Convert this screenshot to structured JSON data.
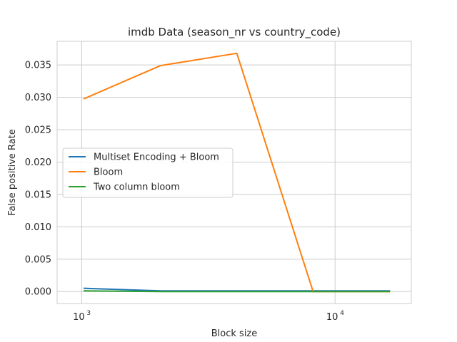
{
  "chart_data": {
    "type": "line",
    "title": "imdb Data (season_nr vs country_code)",
    "xlabel": "Block size",
    "ylabel": "False positive Rate",
    "xscale": "log",
    "xlim": [
      800,
      20000
    ],
    "ylim": [
      -0.00185,
      0.03865
    ],
    "x_ticks": [
      {
        "value": 1000,
        "base": "10",
        "exp": "3"
      },
      {
        "value": 10000,
        "base": "10",
        "exp": "4"
      }
    ],
    "y_ticks": [
      {
        "value": 0.0,
        "label": "0.000"
      },
      {
        "value": 0.005,
        "label": "0.005"
      },
      {
        "value": 0.01,
        "label": "0.010"
      },
      {
        "value": 0.015,
        "label": "0.015"
      },
      {
        "value": 0.02,
        "label": "0.020"
      },
      {
        "value": 0.025,
        "label": "0.025"
      },
      {
        "value": 0.03,
        "label": "0.030"
      },
      {
        "value": 0.035,
        "label": "0.035"
      }
    ],
    "grid": true,
    "legend_position": "center-left",
    "x": [
      1024,
      2048,
      4096,
      8192,
      16384
    ],
    "series": [
      {
        "name": "Multiset Encoding + Bloom",
        "color": "#1f77b4",
        "values": [
          0.0005,
          0.0001,
          0.0001,
          0.0001,
          0.0001
        ]
      },
      {
        "name": "Bloom",
        "color": "#ff7f0e",
        "values": [
          0.0298,
          0.0349,
          0.0368,
          0.0,
          0.0
        ]
      },
      {
        "name": "Two column bloom",
        "color": "#2ca02c",
        "values": [
          0.0001,
          0.0,
          0.0,
          0.0,
          0.0
        ]
      }
    ]
  }
}
